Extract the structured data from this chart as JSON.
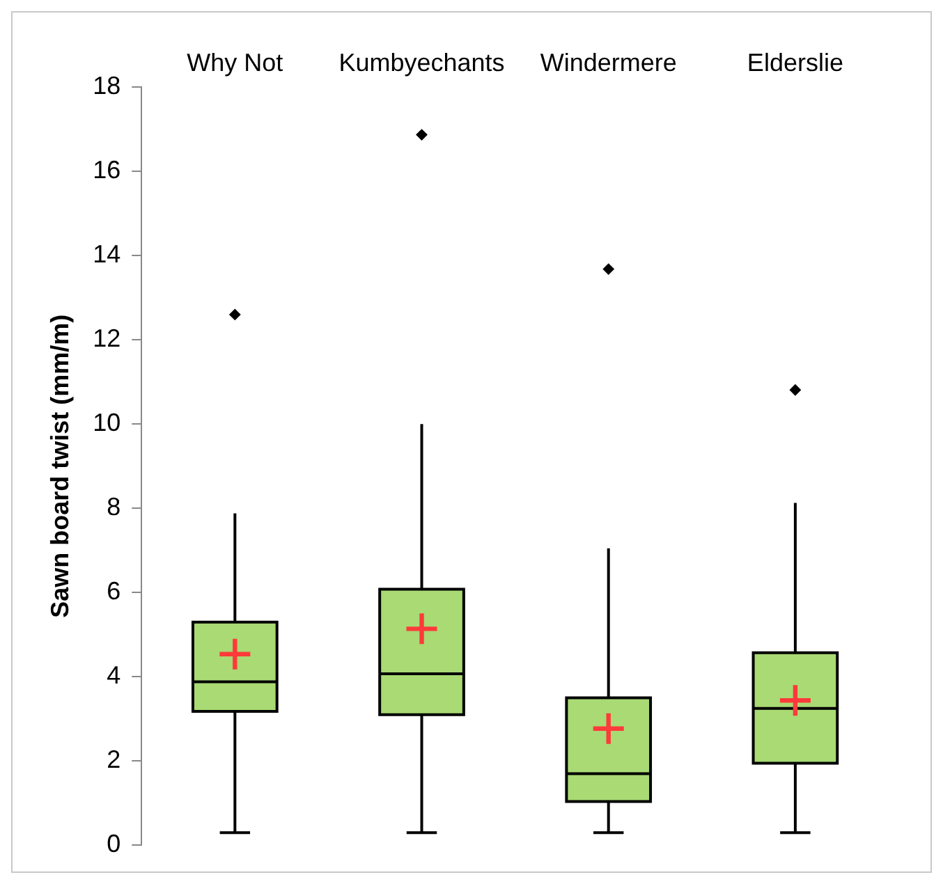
{
  "chart_data": {
    "type": "box",
    "ylabel": "Sawn board twist (mm/m)",
    "categories": [
      "Why Not",
      "Kumbyechants",
      "Windermere",
      "Elderslie"
    ],
    "series": [
      {
        "type": "box",
        "color": "#a9da74",
        "boxes": [
          {
            "low": 0.3,
            "q1": 3.18,
            "median": 3.88,
            "q3": 5.3,
            "high": 7.88,
            "outliers": [
              12.6
            ]
          },
          {
            "low": 0.3,
            "q1": 3.1,
            "median": 4.07,
            "q3": 6.08,
            "high": 10.0,
            "outliers": [
              16.87
            ]
          },
          {
            "low": 0.3,
            "q1": 1.04,
            "median": 1.7,
            "q3": 3.5,
            "high": 7.05,
            "outliers": [
              13.68
            ]
          },
          {
            "low": 0.3,
            "q1": 1.95,
            "median": 3.25,
            "q3": 4.57,
            "high": 8.13,
            "outliers": [
              10.81
            ]
          }
        ]
      },
      {
        "type": "scatter",
        "color": "#ff3a3a",
        "marker": "cross",
        "x": [
          "Why Not",
          "Kumbyechants",
          "Windermere",
          "Elderslie"
        ],
        "values": [
          4.54,
          5.14,
          2.77,
          3.44
        ]
      }
    ],
    "ylim": [
      0,
      18
    ],
    "yticks": [
      0,
      2,
      4,
      6,
      8,
      10,
      12,
      14,
      16,
      18
    ],
    "grid": false,
    "legend": false
  }
}
